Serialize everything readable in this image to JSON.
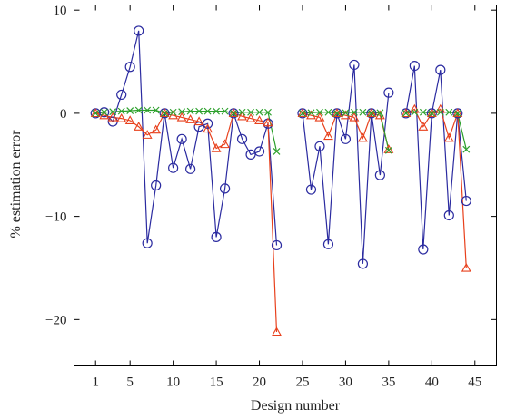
{
  "chart_data": {
    "type": "line",
    "title": "",
    "xlabel": "Design number",
    "ylabel": "% estimation error",
    "xlim": [
      -1.5,
      47.5
    ],
    "ylim": [
      -24.5,
      10.5
    ],
    "xticks": [
      1,
      5,
      10,
      15,
      20,
      25,
      30,
      35,
      40,
      45
    ],
    "yticks": [
      10,
      0,
      -10,
      -20
    ],
    "ytick_labels": [
      "10",
      "0",
      "−10",
      "−20"
    ],
    "grid": false,
    "legend": "none",
    "series": [
      {
        "color": "#2b2ba0",
        "marker": "circle",
        "segments": [
          {
            "x": [
              1,
              2,
              3,
              4,
              5,
              6,
              7,
              8,
              9,
              10,
              11,
              12,
              13,
              14,
              15,
              16,
              17,
              18,
              19,
              20,
              21,
              22
            ],
            "y": [
              0,
              0.1,
              -0.8,
              1.8,
              4.5,
              8.0,
              -12.6,
              -7.0,
              0,
              -5.3,
              -2.5,
              -5.4,
              -1.3,
              -1.0,
              -12.0,
              -7.3,
              0,
              -2.5,
              -4.0,
              -3.7,
              -1.0,
              -12.8
            ]
          },
          {
            "x": [
              25,
              26,
              27,
              28,
              29,
              30,
              31,
              32,
              33,
              34,
              35
            ],
            "y": [
              0,
              -7.4,
              -3.2,
              -12.7,
              0,
              -2.5,
              4.7,
              -14.6,
              0,
              -6.0,
              2.0
            ]
          },
          {
            "x": [
              37,
              38,
              39,
              40,
              41,
              42,
              43,
              44
            ],
            "y": [
              0,
              4.6,
              -13.2,
              0,
              4.2,
              -9.9,
              0,
              -8.5
            ]
          }
        ]
      },
      {
        "color": "#e8401c",
        "marker": "triangle",
        "segments": [
          {
            "x": [
              1,
              2,
              3,
              4,
              5,
              6,
              7,
              8,
              9,
              10,
              11,
              12,
              13,
              14,
              15,
              16,
              17,
              18,
              19,
              20,
              21,
              22
            ],
            "y": [
              0,
              -0.2,
              -0.4,
              -0.5,
              -0.7,
              -1.3,
              -2.1,
              -1.6,
              0,
              -0.2,
              -0.4,
              -0.6,
              -0.8,
              -1.5,
              -3.4,
              -3.0,
              0,
              -0.3,
              -0.5,
              -0.7,
              -0.9,
              -21.2
            ]
          },
          {
            "x": [
              25,
              26,
              27,
              28,
              29,
              30,
              31,
              32,
              33,
              34,
              35
            ],
            "y": [
              0,
              -0.2,
              -0.4,
              -2.2,
              0,
              -0.2,
              -0.4,
              -2.4,
              0,
              -0.2,
              -3.5
            ]
          },
          {
            "x": [
              37,
              38,
              39,
              40,
              41,
              42,
              43,
              44
            ],
            "y": [
              0,
              0.4,
              -1.3,
              0,
              0.4,
              -2.4,
              0,
              -15.0
            ]
          }
        ]
      },
      {
        "color": "#2ca02c",
        "marker": "x",
        "segments": [
          {
            "x": [
              1,
              2,
              3,
              4,
              5,
              6,
              7,
              8,
              9,
              10,
              11,
              12,
              13,
              14,
              15,
              16,
              17,
              18,
              19,
              20,
              21,
              22
            ],
            "y": [
              0,
              0.1,
              0.15,
              0.2,
              0.25,
              0.3,
              0.3,
              0.3,
              0,
              0.1,
              0.15,
              0.2,
              0.2,
              0.2,
              0.2,
              0.2,
              0,
              0.1,
              0.1,
              0.1,
              0.1,
              -3.7
            ]
          },
          {
            "x": [
              25,
              26,
              27,
              28,
              29,
              30,
              31,
              32,
              33,
              34,
              35
            ],
            "y": [
              0,
              0.05,
              0.1,
              0.1,
              0,
              0.05,
              0.1,
              0.1,
              0,
              0.05,
              -3.6
            ]
          },
          {
            "x": [
              37,
              38,
              39,
              40,
              41,
              42,
              43,
              44
            ],
            "y": [
              0,
              0.1,
              0.1,
              0,
              0.1,
              0.1,
              0,
              -3.5
            ]
          }
        ]
      }
    ]
  }
}
